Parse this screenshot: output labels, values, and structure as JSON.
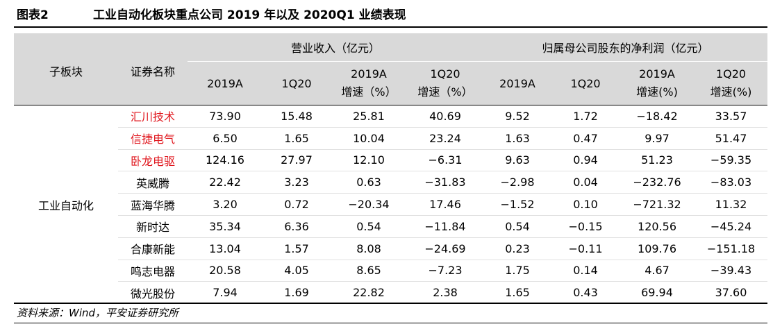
{
  "header": {
    "figure_label": "图表2",
    "title": "工业自动化板块重点公司 2019 年以及 2020Q1 业绩表现"
  },
  "table": {
    "col_segment": "子板块",
    "col_name": "证券名称",
    "group_revenue": "营业收入（亿元）",
    "group_profit": "归属母公司股东的净利润（亿元）",
    "sub": {
      "rev_2019a": "2019A",
      "rev_1q20": "1Q20",
      "rev_2019a_growth_l1": "2019A",
      "rev_2019a_growth_l2": "增速（%）",
      "rev_1q20_growth_l1": "1Q20",
      "rev_1q20_growth_l2": "增速（%）",
      "np_2019a": "2019A",
      "np_1q20": "1Q20",
      "np_2019a_growth_l1": "2019A",
      "np_2019a_growth_l2": "增速(%)",
      "np_1q20_growth_l1": "1Q20",
      "np_1q20_growth_l2": "增速(%)"
    },
    "segment": "工业自动化",
    "rows": [
      {
        "name": "汇川技术",
        "red": true,
        "v": [
          "73.90",
          "15.48",
          "25.81",
          "40.69",
          "9.52",
          "1.72",
          "−18.42",
          "33.57"
        ]
      },
      {
        "name": "信捷电气",
        "red": true,
        "v": [
          "6.50",
          "1.65",
          "10.04",
          "23.24",
          "1.63",
          "0.47",
          "9.97",
          "51.47"
        ]
      },
      {
        "name": "卧龙电驱",
        "red": true,
        "v": [
          "124.16",
          "27.97",
          "12.10",
          "−6.31",
          "9.63",
          "0.94",
          "51.23",
          "−59.35"
        ]
      },
      {
        "name": "英威腾",
        "red": false,
        "v": [
          "22.42",
          "3.23",
          "0.63",
          "−31.83",
          "−2.98",
          "0.04",
          "−232.76",
          "−83.03"
        ]
      },
      {
        "name": "蓝海华腾",
        "red": false,
        "v": [
          "3.20",
          "0.72",
          "−20.34",
          "17.46",
          "−1.52",
          "0.10",
          "−721.32",
          "11.32"
        ]
      },
      {
        "name": "新时达",
        "red": false,
        "v": [
          "35.34",
          "6.36",
          "0.54",
          "−11.84",
          "0.54",
          "−0.15",
          "120.56",
          "−45.24"
        ]
      },
      {
        "name": "合康新能",
        "red": false,
        "v": [
          "13.04",
          "1.57",
          "8.08",
          "−24.69",
          "0.23",
          "−0.11",
          "109.76",
          "−151.18"
        ]
      },
      {
        "name": "鸣志电器",
        "red": false,
        "v": [
          "20.58",
          "4.05",
          "8.65",
          "−7.23",
          "1.75",
          "0.14",
          "4.67",
          "−39.43"
        ]
      },
      {
        "name": "微光股份",
        "red": false,
        "v": [
          "7.94",
          "1.69",
          "22.82",
          "2.38",
          "1.65",
          "0.43",
          "69.94",
          "37.60"
        ]
      }
    ]
  },
  "footer": {
    "source": "资料来源：Wind，平安证券研究所"
  },
  "colors": {
    "header_bg": "#d9d9d9",
    "highlight_red": "#e0161d"
  }
}
